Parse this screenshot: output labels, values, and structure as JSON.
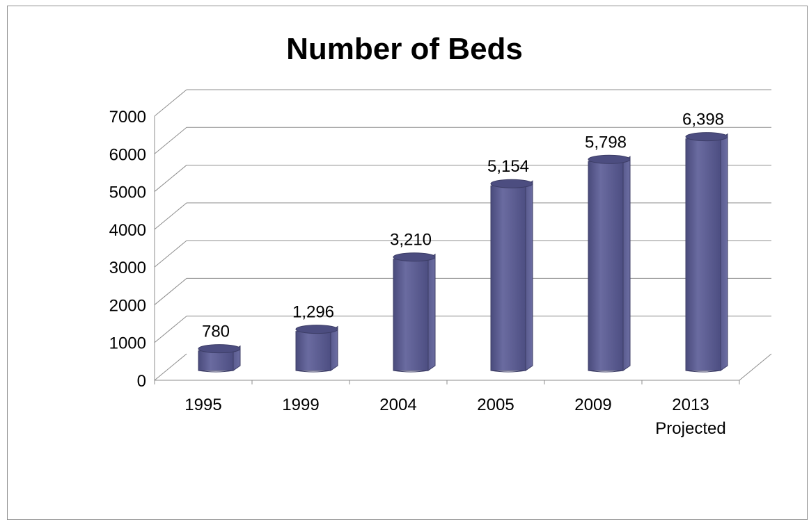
{
  "chart_data": {
    "type": "bar",
    "title": "Number of Beds",
    "categories": [
      "1995",
      "1999",
      "2004",
      "2005",
      "2009",
      "2013"
    ],
    "category_sublabels": [
      "",
      "",
      "",
      "",
      "",
      "Projected"
    ],
    "values": [
      780,
      1296,
      3210,
      5154,
      5798,
      6398
    ],
    "data_labels": [
      "780",
      "1,296",
      "3,210",
      "5,154",
      "5,798",
      "6,398"
    ],
    "yticks": [
      0,
      1000,
      2000,
      3000,
      4000,
      5000,
      6000,
      7000
    ],
    "ylim": [
      0,
      7000
    ],
    "grid": true,
    "bar_color": "#5a5b8f",
    "style": "3d-cylinder"
  }
}
